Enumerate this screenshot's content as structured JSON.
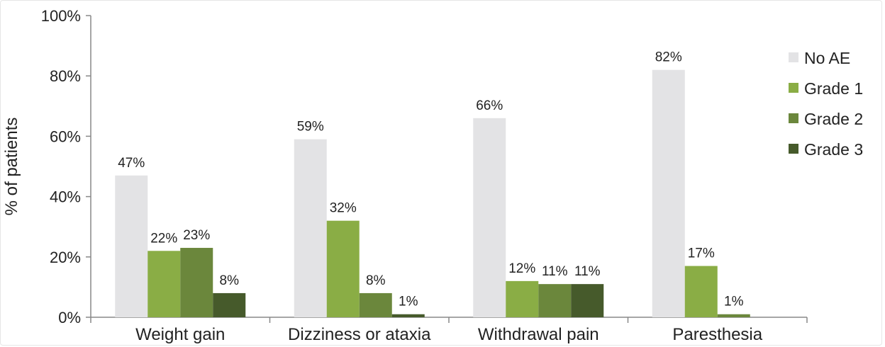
{
  "chart_data": {
    "type": "bar",
    "title": "",
    "xlabel": "",
    "ylabel": "% of patients",
    "ylim": [
      0,
      100
    ],
    "yticks": [
      "0%",
      "20%",
      "40%",
      "60%",
      "80%",
      "100%"
    ],
    "ytick_values": [
      0,
      20,
      40,
      60,
      80,
      100
    ],
    "grid": false,
    "legend_position": "right",
    "categories": [
      "Weight gain",
      "Dizziness or ataxia",
      "Withdrawal pain",
      "Paresthesia"
    ],
    "series": [
      {
        "name": "No AE",
        "color": "#e3e3e5",
        "values": [
          47,
          59,
          66,
          82
        ],
        "labels": [
          "47%",
          "59%",
          "66%",
          "82%"
        ]
      },
      {
        "name": "Grade 1",
        "color": "#8aad45",
        "values": [
          22,
          32,
          12,
          17
        ],
        "labels": [
          "22%",
          "32%",
          "12%",
          "17%"
        ]
      },
      {
        "name": "Grade 2",
        "color": "#6b873c",
        "values": [
          23,
          8,
          11,
          1
        ],
        "labels": [
          "23%",
          "8%",
          "11%",
          "1%"
        ]
      },
      {
        "name": "Grade 3",
        "color": "#465a2b",
        "values": [
          8,
          1,
          11,
          0
        ],
        "labels": [
          "8%",
          "1%",
          "11%",
          ""
        ]
      }
    ]
  }
}
